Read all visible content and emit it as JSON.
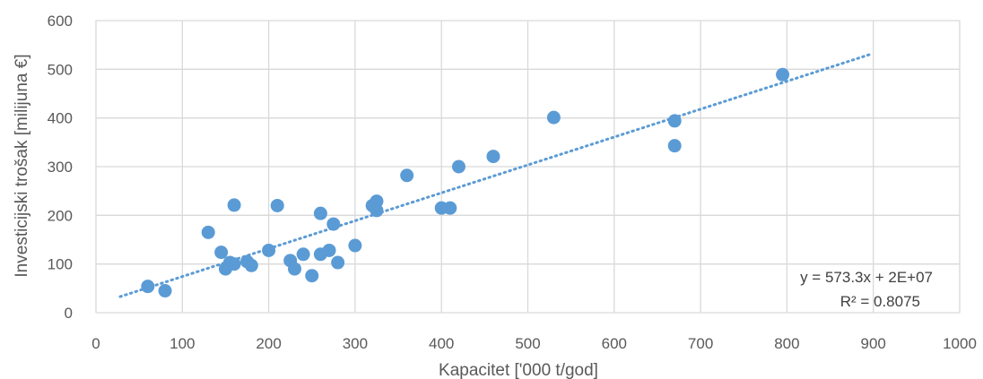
{
  "chart_data": {
    "type": "scatter",
    "title": "",
    "xlabel": "Kapacitet ['000 t/god]",
    "ylabel": "Investicijski trošak [milijuna €]",
    "xlim": [
      0,
      1000
    ],
    "ylim": [
      0,
      600
    ],
    "xticks": [
      0,
      100,
      200,
      300,
      400,
      500,
      600,
      700,
      800,
      900,
      1000
    ],
    "yticks": [
      0,
      100,
      200,
      300,
      400,
      500,
      600
    ],
    "grid": true,
    "colors": {
      "marker": "#5b9bd5",
      "trendline": "#5b9bd5",
      "grid": "#d9d9d9",
      "text": "#595959"
    },
    "series": [
      {
        "points": [
          [
            60,
            54
          ],
          [
            80,
            45
          ],
          [
            130,
            165
          ],
          [
            145,
            124
          ],
          [
            150,
            90
          ],
          [
            155,
            103
          ],
          [
            160,
            221
          ],
          [
            160,
            100
          ],
          [
            175,
            105
          ],
          [
            180,
            97
          ],
          [
            200,
            128
          ],
          [
            210,
            220
          ],
          [
            225,
            107
          ],
          [
            230,
            90
          ],
          [
            240,
            120
          ],
          [
            250,
            76
          ],
          [
            260,
            204
          ],
          [
            260,
            120
          ],
          [
            270,
            128
          ],
          [
            275,
            182
          ],
          [
            280,
            103
          ],
          [
            300,
            138
          ],
          [
            320,
            220
          ],
          [
            325,
            229
          ],
          [
            325,
            210
          ],
          [
            360,
            282
          ],
          [
            400,
            215
          ],
          [
            410,
            215
          ],
          [
            420,
            300
          ],
          [
            460,
            321
          ],
          [
            530,
            401
          ],
          [
            670,
            394
          ],
          [
            670,
            343
          ],
          [
            795,
            489
          ]
        ]
      }
    ],
    "trendline": {
      "type": "linear",
      "from": [
        28,
        33
      ],
      "to": [
        897,
        531
      ],
      "equation": "y = 573.3x + 2E+07",
      "r_squared": "R² = 0.8075"
    }
  }
}
